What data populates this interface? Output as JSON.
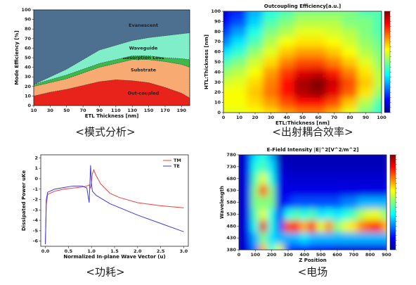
{
  "chart_data": [
    {
      "type": "area",
      "caption": "<模式分析>",
      "x_label": "ETL Thickness [nm]",
      "y_label": "Mode Efficiency [%]",
      "x": [
        10,
        30,
        50,
        70,
        90,
        110,
        130,
        150,
        170,
        190,
        200
      ],
      "xlim": [
        10,
        200
      ],
      "xticks": [
        10,
        30,
        50,
        70,
        90,
        110,
        130,
        150,
        170,
        190
      ],
      "ylim": [
        0,
        100
      ],
      "yticks": [
        0,
        10,
        20,
        30,
        40,
        50,
        60,
        70,
        80,
        90,
        100
      ],
      "series": [
        {
          "name": "Out-coupled",
          "color": "#e8231b",
          "values": [
            10,
            14,
            17,
            21,
            25,
            27,
            26,
            24,
            19,
            13,
            8
          ]
        },
        {
          "name": "Substrate",
          "color": "#f7ab72",
          "values": [
            10,
            10,
            11,
            13,
            15,
            17,
            22,
            24,
            27,
            30,
            32
          ]
        },
        {
          "name": "Absorption Loss",
          "color": "#3db84a",
          "values": [
            2,
            3,
            4,
            4,
            4,
            4,
            4,
            4,
            4,
            6,
            8
          ]
        },
        {
          "name": "Waveguide",
          "color": "#80efc9",
          "values": [
            0,
            3,
            6,
            10,
            14,
            15,
            16,
            19,
            23,
            26,
            28
          ]
        },
        {
          "name": "Evanescent",
          "color": "#4d7090",
          "values": [
            78,
            70,
            62,
            52,
            42,
            37,
            32,
            29,
            27,
            25,
            24
          ]
        }
      ]
    },
    {
      "type": "heatmap",
      "caption": "<出射耦合效率>",
      "title": "Outcoupling Efficiency[a.u.]",
      "x_label": "ETL:Thickness [nm]",
      "y_label": "HTL:Thickness [nm]",
      "x": [
        0,
        10,
        20,
        30,
        40,
        50,
        60,
        70,
        80,
        90,
        100
      ],
      "y": [
        0,
        10,
        20,
        30,
        40,
        50,
        60,
        70,
        80,
        90,
        100
      ],
      "xlim": [
        0,
        100
      ],
      "xticks": [
        0,
        10,
        20,
        30,
        40,
        50,
        60,
        70,
        80,
        90,
        100
      ],
      "ylim": [
        0,
        100
      ],
      "yticks": [
        0,
        10,
        20,
        30,
        40,
        50,
        60,
        70,
        80,
        90,
        100
      ],
      "zlim": [
        0,
        1
      ],
      "z": [
        [
          0.6,
          0.6,
          0.62,
          0.66,
          0.72,
          0.76,
          0.76,
          0.7,
          0.6,
          0.5,
          0.42
        ],
        [
          0.62,
          0.62,
          0.66,
          0.72,
          0.8,
          0.86,
          0.86,
          0.8,
          0.68,
          0.55,
          0.45
        ],
        [
          0.62,
          0.62,
          0.68,
          0.76,
          0.86,
          0.95,
          0.98,
          0.9,
          0.78,
          0.65,
          0.52
        ],
        [
          0.58,
          0.6,
          0.66,
          0.75,
          0.86,
          0.96,
          1,
          0.92,
          0.8,
          0.68,
          0.56
        ],
        [
          0.52,
          0.56,
          0.62,
          0.72,
          0.82,
          0.9,
          0.92,
          0.85,
          0.75,
          0.65,
          0.55
        ],
        [
          0.45,
          0.5,
          0.58,
          0.66,
          0.75,
          0.8,
          0.8,
          0.75,
          0.68,
          0.6,
          0.52
        ],
        [
          0.35,
          0.42,
          0.52,
          0.6,
          0.68,
          0.72,
          0.72,
          0.68,
          0.62,
          0.55,
          0.5
        ],
        [
          0.25,
          0.35,
          0.45,
          0.55,
          0.62,
          0.65,
          0.65,
          0.62,
          0.58,
          0.52,
          0.48
        ],
        [
          0.18,
          0.28,
          0.4,
          0.5,
          0.55,
          0.6,
          0.6,
          0.58,
          0.55,
          0.5,
          0.45
        ],
        [
          0.12,
          0.2,
          0.33,
          0.45,
          0.5,
          0.55,
          0.55,
          0.55,
          0.5,
          0.5,
          0.45
        ],
        [
          0.1,
          0.15,
          0.3,
          0.4,
          0.45,
          0.5,
          0.5,
          0.5,
          0.5,
          0.45,
          0.45
        ]
      ]
    },
    {
      "type": "line",
      "caption": "<功耗>",
      "x_label": "Normalized In-plane Wave Vector (u)",
      "y_label": "Dissipated Power uKe",
      "xlim": [
        -0.1,
        3.1
      ],
      "xticks": [
        {
          "value": 0,
          "label": "0.0"
        },
        0.5,
        {
          "value": 1,
          "label": "1.0"
        },
        1.5,
        {
          "value": 2,
          "label": "2.0"
        },
        2.5,
        {
          "value": 3,
          "label": "3.0"
        }
      ],
      "ylim": [
        -6.5,
        2.3
      ],
      "yticks": [
        2,
        1,
        0,
        -1,
        -2,
        -3,
        -4,
        -5,
        -6
      ],
      "legend": "upper right",
      "series": [
        {
          "name": "TM",
          "color": "#f04040",
          "x": [
            0,
            0.02,
            0.05,
            0.2,
            0.4,
            0.6,
            0.8,
            0.9,
            0.95,
            0.98,
            1.0,
            1.02,
            1.05,
            1.1,
            1.2,
            1.4,
            1.6,
            2.0,
            2.5,
            3.0
          ],
          "values": [
            -6.3,
            -2.5,
            -1.5,
            -1.2,
            -1.0,
            -0.9,
            -0.8,
            -0.7,
            -0.6,
            -0.9,
            -0.3,
            0.5,
            0.85,
            0.3,
            -0.5,
            -1.4,
            -1.8,
            -2.3,
            -2.6,
            -2.8
          ]
        },
        {
          "name": "TE",
          "color": "#3a3ae8",
          "x": [
            0,
            0.02,
            0.05,
            0.2,
            0.4,
            0.6,
            0.8,
            0.9,
            0.95,
            0.98,
            1.0,
            1.02,
            1.1,
            1.4,
            2.0,
            2.5,
            3.0
          ],
          "values": [
            -6.3,
            -2,
            -1.3,
            -1.0,
            -0.85,
            -0.7,
            -0.7,
            -0.9,
            -2.3,
            1.3,
            -0.5,
            -1.2,
            -1.6,
            -2.4,
            -3.5,
            -4.3,
            -5.1
          ]
        }
      ]
    },
    {
      "type": "heatmap",
      "caption": "<电场",
      "title": "E-Field Intensity |E|^2[V^2/m^2]",
      "x_label": "Z Position",
      "y_label": "Wavelength",
      "x": [
        0,
        50,
        100,
        150,
        200,
        250,
        300,
        350,
        400,
        450,
        500,
        550,
        600,
        650,
        700,
        750,
        800,
        850,
        900
      ],
      "y": [
        380,
        430,
        480,
        530,
        580,
        630,
        680,
        730,
        780
      ],
      "xlim": [
        0,
        900
      ],
      "xticks": [
        0,
        100,
        200,
        300,
        400,
        500,
        600,
        700,
        800,
        900
      ],
      "ylim": [
        380,
        780
      ],
      "yticks": [
        380,
        430,
        480,
        530,
        580,
        630,
        680,
        730,
        780
      ],
      "zlim": [
        0,
        1
      ],
      "z": [
        [
          0.05,
          0.1,
          0.25,
          0.7,
          0.4,
          0.6,
          0.2,
          0.15,
          0.15,
          0.15,
          0.12,
          0.12,
          0.1,
          0.1,
          0.1,
          0.1,
          0.1,
          0.1,
          0.1
        ],
        [
          0.05,
          0.1,
          0.3,
          0.5,
          0.35,
          0.3,
          0.3,
          0.3,
          0.35,
          0.3,
          0.3,
          0.3,
          0.3,
          0.3,
          0.3,
          0.3,
          0.3,
          0.3,
          0.3
        ],
        [
          0.05,
          0.1,
          0.4,
          0.9,
          0.4,
          0.2,
          0.8,
          0.85,
          0.7,
          0.85,
          0.6,
          0.75,
          0.5,
          0.6,
          0.65,
          0.75,
          0.8,
          0.85,
          0.7
        ],
        [
          0.05,
          0.1,
          0.45,
          0.6,
          0.4,
          0.15,
          0.4,
          0.45,
          0.4,
          0.45,
          0.35,
          0.4,
          0.35,
          0.4,
          0.45,
          0.55,
          0.6,
          0.6,
          0.5
        ],
        [
          0.05,
          0.1,
          0.5,
          0.5,
          0.5,
          0.1,
          0.15,
          0.2,
          0.2,
          0.2,
          0.2,
          0.2,
          0.2,
          0.25,
          0.25,
          0.3,
          0.3,
          0.3,
          0.3
        ],
        [
          0.05,
          0.1,
          0.5,
          0.8,
          0.5,
          0.1,
          0.1,
          0.1,
          0.1,
          0.1,
          0.1,
          0.1,
          0.1,
          0.1,
          0.1,
          0.1,
          0.1,
          0.1,
          0.1
        ],
        [
          0.05,
          0.1,
          0.45,
          0.6,
          0.4,
          0.1,
          0.08,
          0.08,
          0.08,
          0.08,
          0.08,
          0.08,
          0.08,
          0.08,
          0.08,
          0.08,
          0.08,
          0.08,
          0.08
        ],
        [
          0.05,
          0.1,
          0.4,
          0.45,
          0.35,
          0.08,
          0.06,
          0.06,
          0.06,
          0.06,
          0.06,
          0.06,
          0.06,
          0.06,
          0.06,
          0.06,
          0.06,
          0.06,
          0.06
        ],
        [
          0.05,
          0.1,
          0.35,
          0.4,
          0.3,
          0.05,
          0.05,
          0.05,
          0.05,
          0.05,
          0.05,
          0.05,
          0.05,
          0.05,
          0.05,
          0.05,
          0.05,
          0.05,
          0.05
        ]
      ]
    }
  ]
}
